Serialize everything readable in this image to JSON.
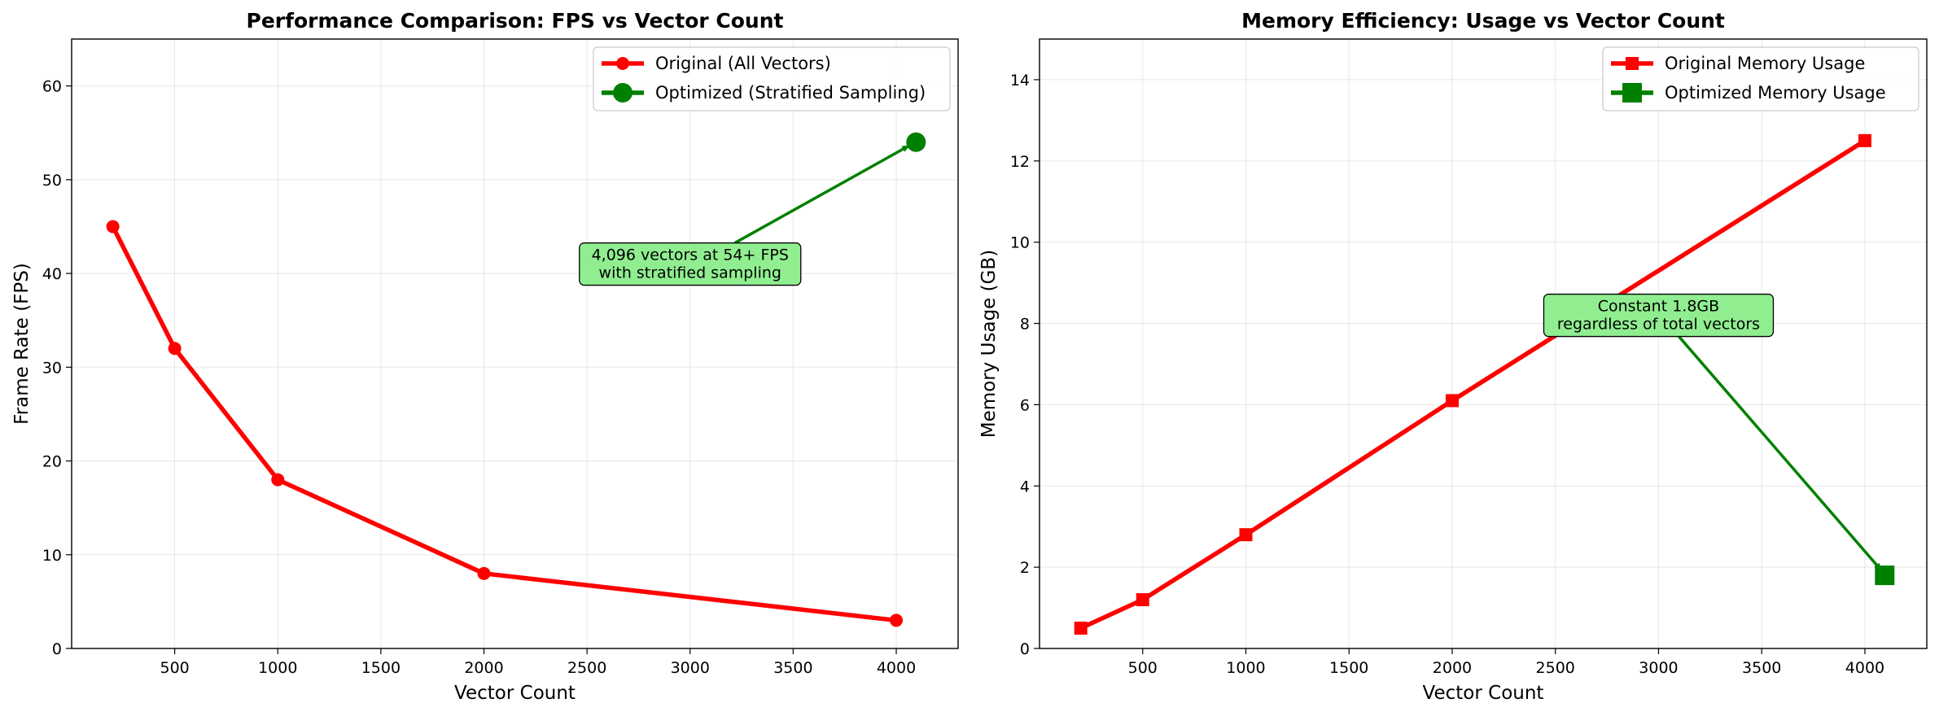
{
  "chart_data": [
    {
      "type": "line",
      "title": "Performance Comparison: FPS vs Vector Count",
      "xlabel": "Vector Count",
      "ylabel": "Frame Rate (FPS)",
      "xlim": [
        0,
        4300
      ],
      "ylim": [
        0,
        65
      ],
      "xticks": [
        500,
        1000,
        1500,
        2000,
        2500,
        3000,
        3500,
        4000
      ],
      "yticks": [
        0,
        10,
        20,
        30,
        40,
        50,
        60
      ],
      "grid": true,
      "legend_position": "top-right",
      "series": [
        {
          "name": "Original (All Vectors)",
          "color": "#ff0000",
          "marker": "circle",
          "x": [
            200,
            500,
            1000,
            2000,
            4000
          ],
          "y": [
            45,
            32,
            18,
            8,
            3
          ]
        },
        {
          "name": "Optimized (Stratified Sampling)",
          "color": "#008000",
          "marker": "circle",
          "x": [
            4096
          ],
          "y": [
            54
          ]
        }
      ],
      "annotation": {
        "lines": [
          "4,096 vectors at 54+ FPS",
          "with stratified sampling"
        ],
        "text_x": 3000,
        "text_y": 41,
        "arrow_to_x": 4096,
        "arrow_to_y": 54,
        "box_color": "#90ee90",
        "arrow_color": "#008000"
      }
    },
    {
      "type": "line",
      "title": "Memory Efficiency: Usage vs Vector Count",
      "xlabel": "Vector Count",
      "ylabel": "Memory Usage (GB)",
      "xlim": [
        0,
        4300
      ],
      "ylim": [
        0,
        15
      ],
      "xticks": [
        500,
        1000,
        1500,
        2000,
        2500,
        3000,
        3500,
        4000
      ],
      "yticks": [
        0,
        2,
        4,
        6,
        8,
        10,
        12,
        14
      ],
      "grid": true,
      "legend_position": "top-right",
      "series": [
        {
          "name": "Original Memory Usage",
          "color": "#ff0000",
          "marker": "square",
          "x": [
            200,
            500,
            1000,
            2000,
            4000
          ],
          "y": [
            0.5,
            1.2,
            2.8,
            6.1,
            12.5
          ]
        },
        {
          "name": "Optimized Memory Usage",
          "color": "#008000",
          "marker": "square",
          "x": [
            4096
          ],
          "y": [
            1.8
          ]
        }
      ],
      "annotation": {
        "lines": [
          "Constant 1.8GB",
          "regardless of total vectors"
        ],
        "text_x": 3000,
        "text_y": 8.2,
        "arrow_to_x": 4096,
        "arrow_to_y": 1.8,
        "box_color": "#90ee90",
        "arrow_color": "#008000"
      }
    }
  ]
}
